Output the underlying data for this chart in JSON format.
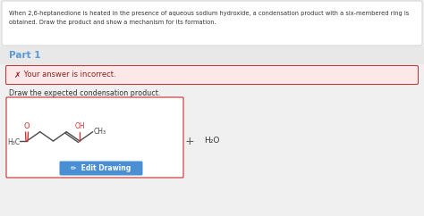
{
  "bg_color": "#f0f0f0",
  "white": "#ffffff",
  "top_text_line1": "When 2,6-heptanedione is heated in the presence of aqueous sodium hydroxide, a condensation product with a six-membered ring is",
  "top_text_line2": "obtained. Draw the product and show a mechanism for its formation.",
  "part1_label": "Part 1",
  "part1_label_color": "#5b9bd5",
  "part1_bg": "#e8e8e8",
  "error_bg": "#fce8e8",
  "error_border": "#b94040",
  "error_x": "✗",
  "error_text": " Your answer is incorrect.",
  "error_text_color": "#8b2020",
  "draw_text": "Draw the expected condensation product.",
  "draw_text_color": "#333333",
  "molecule_box_bg": "#ffffff",
  "molecule_box_border": "#cc4444",
  "plus_sign": "+",
  "water_text": "H₂O",
  "edit_btn_color": "#4a8fd4",
  "edit_btn_text": "✏  Edit Drawing",
  "edit_btn_text_color": "#ffffff",
  "top_box_bg": "#ffffff",
  "top_box_border": "#cccccc",
  "mol_color": "#4a4a4a",
  "mol_red": "#cc3333"
}
